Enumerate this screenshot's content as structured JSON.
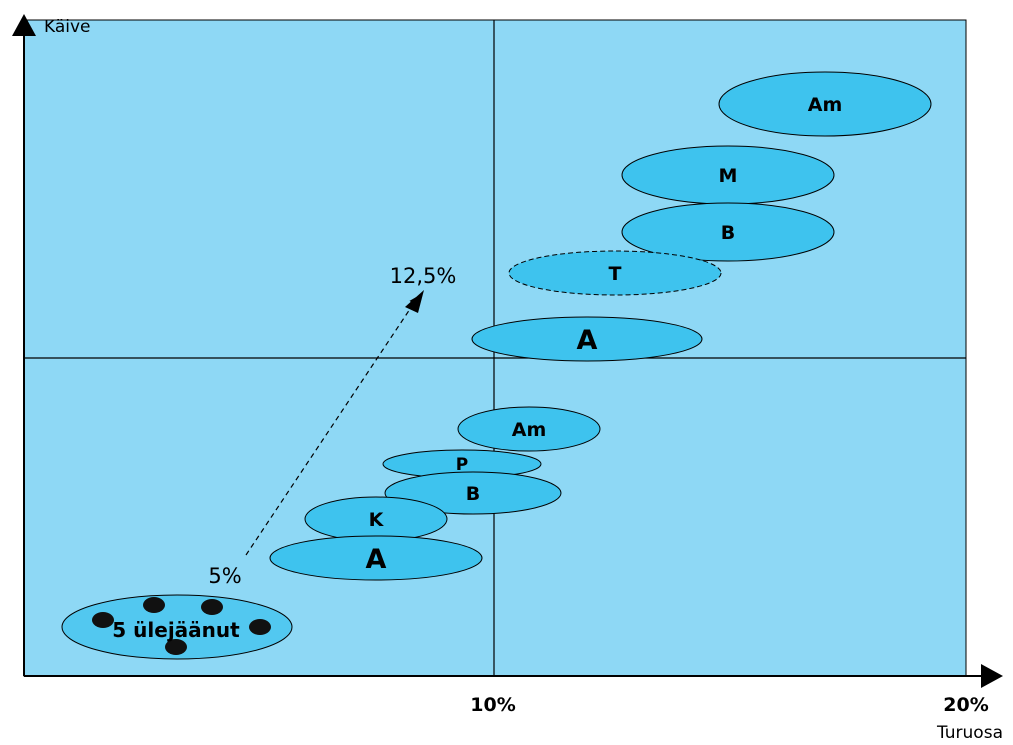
{
  "axes": {
    "y_title": "Käive",
    "x_title": "Turuosa",
    "x_tick_mid": "10%",
    "x_tick_end": "20%"
  },
  "bubbles": [
    {
      "id": "am-top",
      "label": "Am",
      "style": "solid"
    },
    {
      "id": "m",
      "label": "M",
      "style": "solid"
    },
    {
      "id": "b-top",
      "label": "B",
      "style": "solid"
    },
    {
      "id": "t",
      "label": "T",
      "style": "dashed"
    },
    {
      "id": "a-top",
      "label": "A",
      "style": "solid"
    },
    {
      "id": "am-low",
      "label": "Am",
      "style": "solid"
    },
    {
      "id": "p",
      "label": "P",
      "style": "solid"
    },
    {
      "id": "b-low",
      "label": "B",
      "style": "solid"
    },
    {
      "id": "k",
      "label": "K",
      "style": "solid"
    },
    {
      "id": "a-low",
      "label": "A",
      "style": "solid"
    },
    {
      "id": "rest",
      "label": "5 ülejäänut",
      "style": "solid"
    }
  ],
  "growth_arrow": {
    "start_label": "5%",
    "end_label": "12,5%"
  },
  "colors": {
    "plot_background": "#8ed8f5",
    "bubble_fill": "#3ec3ee",
    "rest_bubble_fill": "#52c8f0",
    "outline": "#000000"
  }
}
